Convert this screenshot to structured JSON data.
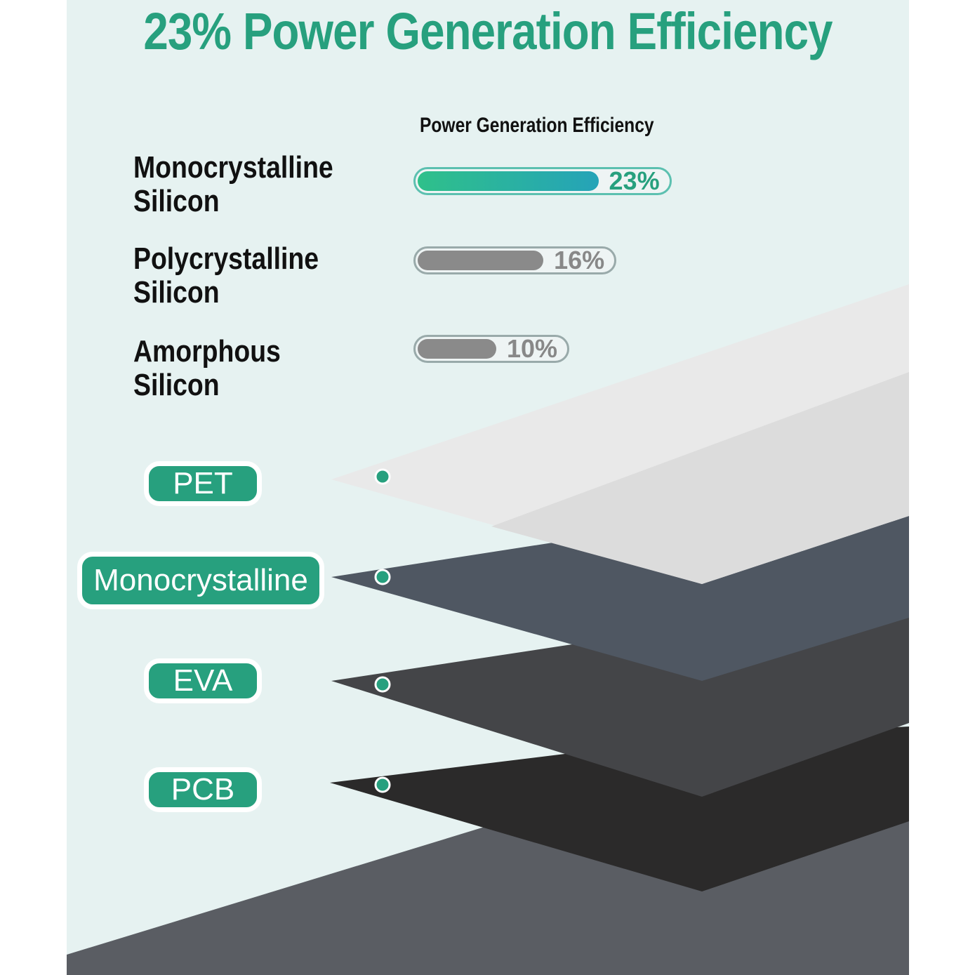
{
  "header": {
    "title": "23% Power Generation Efficiency"
  },
  "efficiency": {
    "heading": "Power Generation Efficiency",
    "items": [
      {
        "label_lines": [
          "Monocrystalline",
          "Silicon"
        ],
        "value": 23,
        "value_label": "23%"
      },
      {
        "label_lines": [
          "Polycrystalline",
          "Silicon"
        ],
        "value": 16,
        "value_label": "16%"
      },
      {
        "label_lines": [
          "Amorphous",
          "Silicon"
        ],
        "value": 10,
        "value_label": "10%"
      }
    ]
  },
  "layers": [
    "PET",
    "Monocrystalline",
    "EVA",
    "PCB"
  ]
}
